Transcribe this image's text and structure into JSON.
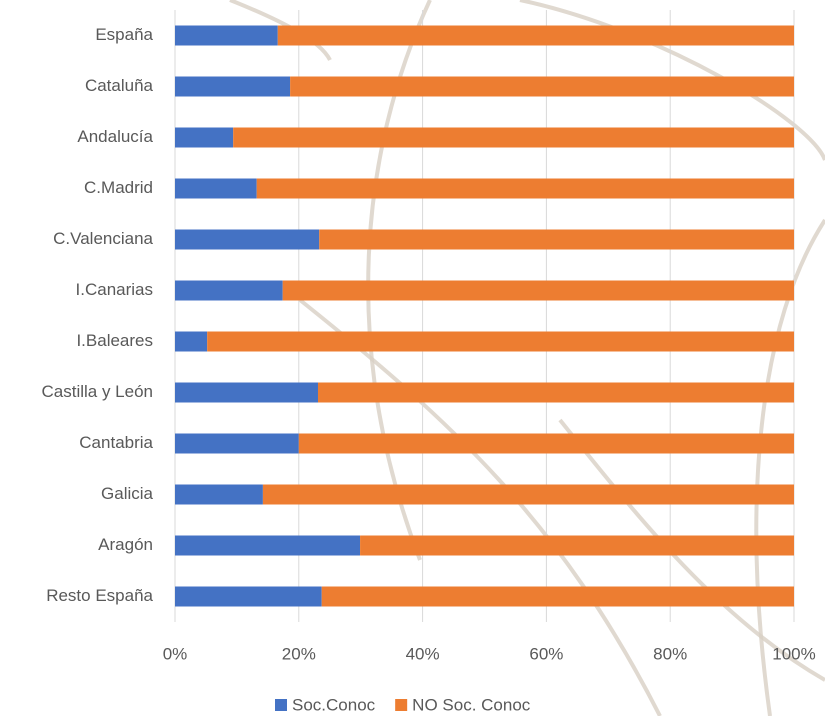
{
  "chart_data": {
    "type": "stacked_barh",
    "categories": [
      "España",
      "Cataluña",
      "Andalucía",
      "C.Madrid",
      "C.Valenciana",
      "I.Canarias",
      "I.Baleares",
      "Castilla y León",
      "Cantabria",
      "Galicia",
      "Aragón",
      "Resto España"
    ],
    "series": [
      {
        "name": "Soc.Conoc",
        "color": "#4472c4",
        "values": [
          16.6,
          18.6,
          9.4,
          13.2,
          23.3,
          17.4,
          5.2,
          23.1,
          20.0,
          14.2,
          29.9,
          23.7
        ]
      },
      {
        "name": "NO Soc. Conoc",
        "color": "#ed7d31",
        "values": [
          83.4,
          81.4,
          90.6,
          86.8,
          76.7,
          82.6,
          94.8,
          76.9,
          80.0,
          85.8,
          70.1,
          76.3
        ]
      }
    ],
    "xlim": [
      0,
      100
    ],
    "xticks": [
      {
        "value": 0,
        "label": "0%"
      },
      {
        "value": 20,
        "label": "20%"
      },
      {
        "value": 40,
        "label": "40%"
      },
      {
        "value": 60,
        "label": "60%"
      },
      {
        "value": 80,
        "label": "80%"
      },
      {
        "value": 100,
        "label": "100%"
      }
    ],
    "grid": true,
    "legend": "bottom"
  }
}
